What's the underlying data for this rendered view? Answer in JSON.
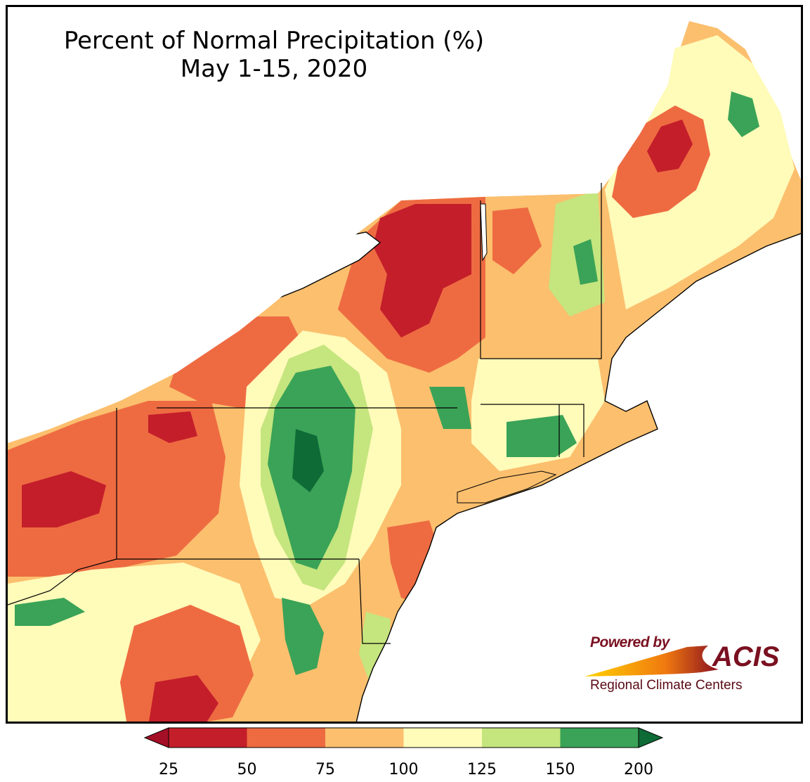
{
  "title": {
    "line1": "Percent of Normal Precipitation (%)",
    "line2": "May 1-15, 2020"
  },
  "logo": {
    "powered_by": "Powered by",
    "acis": "ACIS",
    "subtitle": "Regional Climate Centers"
  },
  "colorbar": {
    "colors": [
      "#c41e2a",
      "#ee6b42",
      "#fbbf6e",
      "#fffbb9",
      "#c5e57e",
      "#3aa357"
    ],
    "under_color": "#a50f26",
    "over_color": "#0e6b36",
    "tick_labels": [
      "25",
      "50",
      "75",
      "100",
      "125",
      "150",
      "200"
    ]
  }
}
